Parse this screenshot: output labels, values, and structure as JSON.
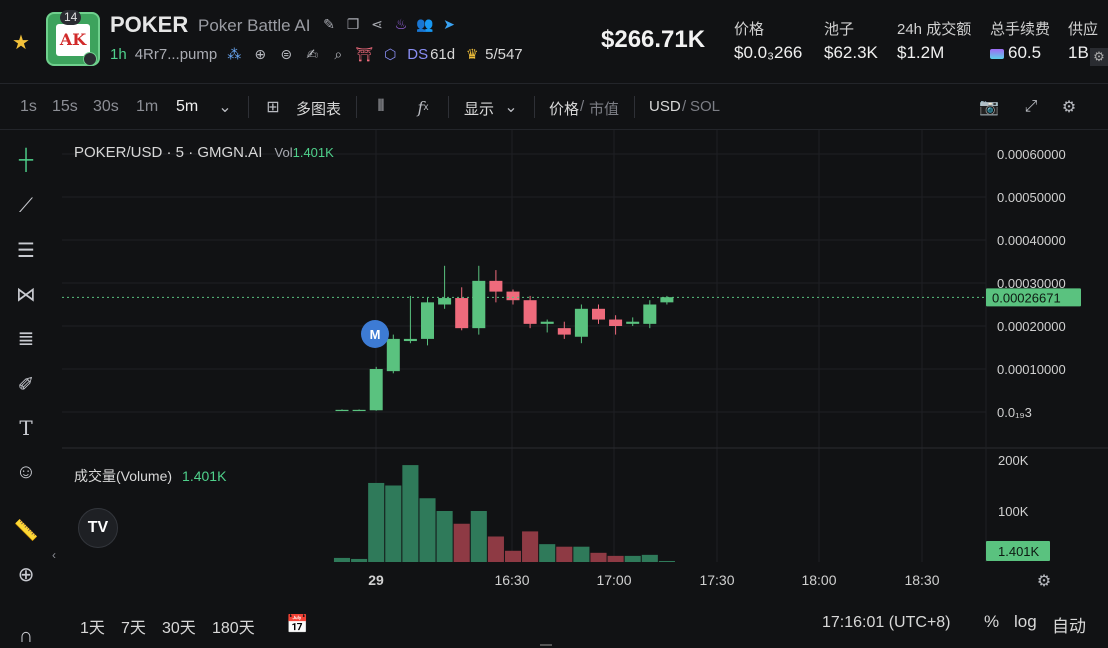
{
  "header": {
    "logo_text": "AK",
    "logo_badge": "14",
    "title": "POKER",
    "subtitle": "Poker Battle AI",
    "age": "1h",
    "address": "4Rr7...pump",
    "ds_label": "DS",
    "ds_value": "61d",
    "holders": "5/547",
    "market_cap": "$266.71K",
    "stats": [
      {
        "label": "价格",
        "value": "$0.0₃266"
      },
      {
        "label": "池子",
        "value": "$62.3K"
      },
      {
        "label": "24h 成交额",
        "value": "$1.2M"
      },
      {
        "label": "总手续费",
        "value": "60.5"
      },
      {
        "label": "供应",
        "value": "1B"
      }
    ]
  },
  "toolbar": {
    "timeframes": [
      "1s",
      "15s",
      "30s",
      "1m",
      "5m"
    ],
    "active_timeframe": "5m",
    "multi_chart": "多图表",
    "display": "显示",
    "price": "价格",
    "mcap": "市值",
    "usd": "USD",
    "sol": "SOL"
  },
  "chart": {
    "symbol": "POKER/USD · 5 · GMGN.AI",
    "vol_label": "Vol",
    "vol_value": "1.401K",
    "volume_label": "成交量(Volume)",
    "volume_value": "1.401K",
    "marker": "M",
    "tv_logo": "TV"
  },
  "chart_data": {
    "type": "candlestick",
    "price_axis": [
      "0.00060000",
      "0.00050000",
      "0.00040000",
      "0.00030000",
      "0.00020000",
      "0.00010000",
      "0.0₁₉3"
    ],
    "current_price": "0.00026671",
    "volume_axis": [
      "200K",
      "100K"
    ],
    "current_volume": "1.401K",
    "x_ticks": [
      "29",
      "16:30",
      "17:00",
      "17:30",
      "18:00",
      "18:30"
    ],
    "candles": [
      {
        "o": 5e-06,
        "h": 6e-06,
        "l": 4e-06,
        "c": 5e-06,
        "v": 8000
      },
      {
        "o": 5e-06,
        "h": 6e-06,
        "l": 4e-06,
        "c": 5e-06,
        "v": 6000
      },
      {
        "o": 4e-06,
        "h": 0.000105,
        "l": 3e-06,
        "c": 0.0001,
        "v": 155000
      },
      {
        "o": 9.5e-05,
        "h": 0.00018,
        "l": 9e-05,
        "c": 0.00017,
        "v": 150000
      },
      {
        "o": 0.000165,
        "h": 0.00027,
        "l": 0.00016,
        "c": 0.00017,
        "v": 190000
      },
      {
        "o": 0.00017,
        "h": 0.000265,
        "l": 0.000155,
        "c": 0.000255,
        "v": 125000
      },
      {
        "o": 0.00025,
        "h": 0.00034,
        "l": 0.00024,
        "c": 0.000265,
        "v": 100000
      },
      {
        "o": 0.000265,
        "h": 0.00029,
        "l": 0.00019,
        "c": 0.000195,
        "v": 75000
      },
      {
        "o": 0.000195,
        "h": 0.00034,
        "l": 0.00018,
        "c": 0.000305,
        "v": 100000
      },
      {
        "o": 0.000305,
        "h": 0.00033,
        "l": 0.000255,
        "c": 0.00028,
        "v": 50000
      },
      {
        "o": 0.00028,
        "h": 0.000285,
        "l": 0.00025,
        "c": 0.00026,
        "v": 22000
      },
      {
        "o": 0.00026,
        "h": 0.00027,
        "l": 0.000195,
        "c": 0.000205,
        "v": 60000
      },
      {
        "o": 0.000205,
        "h": 0.000215,
        "l": 0.000185,
        "c": 0.00021,
        "v": 35000
      },
      {
        "o": 0.000195,
        "h": 0.00021,
        "l": 0.00017,
        "c": 0.00018,
        "v": 30000
      },
      {
        "o": 0.000175,
        "h": 0.00025,
        "l": 0.00016,
        "c": 0.00024,
        "v": 30000
      },
      {
        "o": 0.00024,
        "h": 0.00025,
        "l": 0.000205,
        "c": 0.000215,
        "v": 18000
      },
      {
        "o": 0.000215,
        "h": 0.000225,
        "l": 0.00018,
        "c": 0.0002,
        "v": 12000
      },
      {
        "o": 0.000205,
        "h": 0.00022,
        "l": 0.0002,
        "c": 0.00021,
        "v": 12000
      },
      {
        "o": 0.000205,
        "h": 0.00026,
        "l": 0.000195,
        "c": 0.00025,
        "v": 14000
      },
      {
        "o": 0.000255,
        "h": 0.00027,
        "l": 0.00025,
        "c": 0.000267,
        "v": 2000
      }
    ]
  },
  "bottom": {
    "ranges": [
      "1天",
      "7天",
      "30天",
      "180天"
    ],
    "clock": "17:16:01 (UTC+8)",
    "percent": "%",
    "log": "log",
    "auto": "自动"
  },
  "colors": {
    "up": "#5ac27f",
    "down": "#ee6b7c",
    "up_vol": "#2f7a5a",
    "down_vol": "#8e3a44",
    "price_tag": "#5ac27f"
  }
}
